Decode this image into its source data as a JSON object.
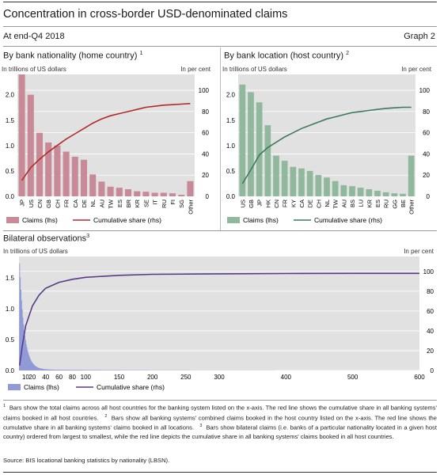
{
  "header": {
    "title": "Concentration in cross-border USD-denominated claims",
    "subtitle": "At end-Q4 2018",
    "graph_no": "Graph 2"
  },
  "panels": {
    "left": {
      "title": "By bank nationality (home country)",
      "title_sup": "1"
    },
    "right": {
      "title": "By bank location (host country)",
      "title_sup": "2"
    },
    "bottom": {
      "title": "Bilateral observations",
      "title_sup": "3"
    }
  },
  "footnotes": [
    {
      "n": "1",
      "text": "Bars show the total claims across all host countries for the banking system listed on the x-axis. The red line shows the cumulative share in all banking systems' claims booked in all host countries."
    },
    {
      "n": "2",
      "text": "Bars show all banking systems' combined claims booked in the host country listed on the x-axis. The red line shows the cumulative share in all banking systems' claims booked in all locations."
    },
    {
      "n": "3",
      "text": "Bars show bilateral claims (i.e. banks of a particular nationality located in a given host country) ordered from largest to smallest, while the red line depicts the cumulative share in all banking systems' claims booked in all host countries."
    }
  ],
  "source": "Source: BIS locational banking statistics by nationality (LBSN).",
  "colors": {
    "red_bar": "#c98a97",
    "red_line": "#b32a2a",
    "green_bar": "#8fb89c",
    "green_line": "#3c7a5f",
    "blue_bar": "#8f9ad6",
    "purple_line": "#5a3a8a",
    "plot_bg": "#e1e1e1"
  },
  "chart_data": [
    {
      "type": "bar",
      "title": "By bank nationality (home country)",
      "ylabel_left": "In trillions of US dollars",
      "ylabel_right": "In per cent",
      "yticks_left": [
        "0.0",
        "0.5",
        "1.0",
        "1.5",
        "2.0"
      ],
      "yticks_right": [
        "0",
        "20",
        "40",
        "60",
        "80",
        "100"
      ],
      "ylim_left": [
        0,
        2.4
      ],
      "ylim_right": [
        0,
        115
      ],
      "categories": [
        "JP",
        "US",
        "CN",
        "GB",
        "CH",
        "FR",
        "CA",
        "DE",
        "NL",
        "AU",
        "TW",
        "ES",
        "BR",
        "KR",
        "SE",
        "IT",
        "RU",
        "FI",
        "SG",
        "Other"
      ],
      "series": [
        {
          "name": "Claims (lhs)",
          "kind": "bar",
          "values": [
            2.4,
            2.0,
            1.25,
            1.06,
            1.0,
            0.88,
            0.78,
            0.72,
            0.43,
            0.29,
            0.19,
            0.17,
            0.14,
            0.1,
            0.09,
            0.07,
            0.07,
            0.06,
            0.03,
            0.3
          ]
        },
        {
          "name": "Cumulative share (rhs)",
          "kind": "line",
          "values": [
            15,
            27,
            35,
            42,
            48,
            54,
            59,
            64,
            69,
            73,
            76,
            78,
            80,
            82,
            84,
            85,
            86,
            86.5,
            87,
            87.5
          ]
        }
      ],
      "legend": [
        "Claims (lhs)",
        "Cumulative share (rhs)"
      ]
    },
    {
      "type": "bar",
      "title": "By bank location (host country)",
      "ylabel_left": "In trillions of US dollars",
      "ylabel_right": "In per cent",
      "yticks_left": [
        "0.0",
        "0.5",
        "1.0",
        "1.5",
        "2.0"
      ],
      "yticks_right": [
        "0",
        "20",
        "40",
        "60",
        "80",
        "100"
      ],
      "ylim_left": [
        0,
        2.4
      ],
      "ylim_right": [
        0,
        115
      ],
      "categories": [
        "US",
        "GB",
        "JP",
        "HK",
        "CN",
        "FR",
        "KY",
        "CA",
        "DE",
        "CH",
        "NL",
        "TW",
        "AU",
        "BS",
        "LU",
        "KR",
        "ES",
        "RU",
        "GG",
        "BE",
        "Other"
      ],
      "series": [
        {
          "name": "Claims (lhs)",
          "kind": "bar",
          "values": [
            2.2,
            2.05,
            1.85,
            1.4,
            0.8,
            0.7,
            0.58,
            0.55,
            0.5,
            0.42,
            0.37,
            0.3,
            0.22,
            0.2,
            0.17,
            0.14,
            0.11,
            0.08,
            0.06,
            0.05,
            0.8
          ]
        },
        {
          "name": "Cumulative share (rhs)",
          "kind": "line",
          "values": [
            12,
            25,
            39,
            46,
            51,
            56,
            60,
            64,
            67,
            70,
            73,
            75,
            77,
            79,
            80,
            81,
            82,
            83,
            83.5,
            84,
            84
          ]
        }
      ],
      "legend": [
        "Claims (lhs)",
        "Cumulative share (rhs)"
      ]
    },
    {
      "type": "bar",
      "title": "Bilateral observations",
      "ylabel_left": "In trillions of US dollars",
      "ylabel_right": "In per cent",
      "yticks_left": [
        "0.0",
        "0.5",
        "1.0",
        "1.5"
      ],
      "yticks_right": [
        "0",
        "20",
        "40",
        "60",
        "80",
        "100"
      ],
      "ylim_left": [
        0,
        1.85
      ],
      "ylim_right": [
        0,
        115
      ],
      "xticks": [
        "10",
        "20",
        "40",
        "60",
        "80",
        "100",
        "150",
        "200",
        "250",
        "300",
        "400",
        "500",
        "600"
      ],
      "xlim": [
        0,
        600
      ],
      "series": [
        {
          "name": "Claims (lhs)",
          "kind": "bar",
          "shape": "decaying",
          "peak": 1.72,
          "n_obs": 600
        },
        {
          "name": "Cumulative share (rhs)",
          "kind": "line",
          "x": [
            1,
            5,
            10,
            20,
            30,
            40,
            60,
            80,
            100,
            150,
            200,
            300,
            400,
            500,
            600
          ],
          "values": [
            5,
            25,
            45,
            65,
            76,
            83,
            89,
            92,
            94,
            96,
            97,
            97.5,
            97.8,
            98,
            98
          ]
        }
      ],
      "legend": [
        "Claims (lhs)",
        "Cumulative share (rhs)"
      ]
    }
  ]
}
